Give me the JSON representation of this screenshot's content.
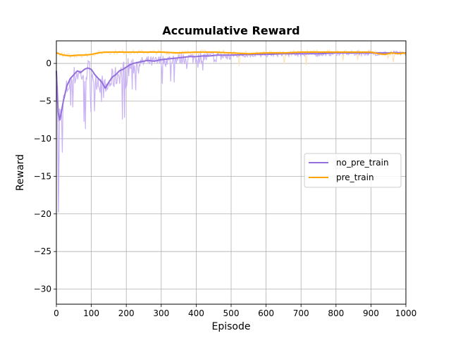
{
  "chart_data": {
    "type": "line",
    "title": "Accumulative Reward",
    "xlabel": "Episode",
    "ylabel": "Reward",
    "xlim": [
      0,
      1000
    ],
    "ylim": [
      -32,
      3
    ],
    "grid": true,
    "legend_position": "center-right",
    "xticks": [
      0,
      100,
      200,
      300,
      400,
      500,
      600,
      700,
      800,
      900,
      1000
    ],
    "yticks": [
      0,
      -5,
      -10,
      -15,
      -20,
      -25,
      -30
    ],
    "xtick_labels": [
      "0",
      "100",
      "200",
      "300",
      "400",
      "500",
      "600",
      "700",
      "800",
      "900",
      "1000"
    ],
    "ytick_labels": [
      "0",
      "−5",
      "−10",
      "−15",
      "−20",
      "−25",
      "−30"
    ],
    "colors": {
      "no_pre_train": "#9370DB",
      "no_pre_train_raw": "#c9b3f4",
      "pre_train": "#FFA500",
      "pre_train_raw": "#ffe0b0",
      "grid": "#b0b0b0"
    },
    "series": [
      {
        "name": "no_pre_train",
        "x": [
          0,
          5,
          10,
          20,
          30,
          40,
          50,
          60,
          70,
          80,
          90,
          100,
          110,
          120,
          130,
          140,
          150,
          160,
          170,
          180,
          190,
          200,
          210,
          220,
          230,
          240,
          250,
          260,
          280,
          300,
          320,
          340,
          360,
          380,
          400,
          420,
          440,
          460,
          480,
          500,
          550,
          600,
          650,
          700,
          750,
          800,
          850,
          900,
          950,
          1000
        ],
        "values": [
          -1.0,
          -6.5,
          -7.5,
          -5.0,
          -3.0,
          -2.0,
          -1.5,
          -1.0,
          -1.2,
          -0.8,
          -0.6,
          -0.8,
          -1.5,
          -2.0,
          -2.5,
          -3.3,
          -2.5,
          -1.8,
          -1.5,
          -1.0,
          -0.8,
          -0.5,
          -0.2,
          0.0,
          0.1,
          0.2,
          0.3,
          0.4,
          0.3,
          0.5,
          0.6,
          0.7,
          0.8,
          0.9,
          0.9,
          1.0,
          1.0,
          1.1,
          1.1,
          1.1,
          1.2,
          1.2,
          1.3,
          1.3,
          1.3,
          1.4,
          1.4,
          1.4,
          1.4,
          1.4
        ]
      },
      {
        "name": "pre_train",
        "x": [
          0,
          20,
          40,
          60,
          80,
          100,
          120,
          140,
          160,
          200,
          250,
          300,
          350,
          400,
          450,
          500,
          550,
          600,
          650,
          700,
          750,
          800,
          850,
          900,
          920,
          940,
          960,
          980,
          1000
        ],
        "values": [
          1.4,
          1.1,
          1.0,
          1.1,
          1.1,
          1.2,
          1.4,
          1.5,
          1.5,
          1.5,
          1.5,
          1.5,
          1.4,
          1.5,
          1.5,
          1.4,
          1.3,
          1.4,
          1.4,
          1.5,
          1.5,
          1.5,
          1.5,
          1.5,
          1.3,
          1.2,
          1.4,
          1.3,
          1.4
        ]
      }
    ]
  }
}
